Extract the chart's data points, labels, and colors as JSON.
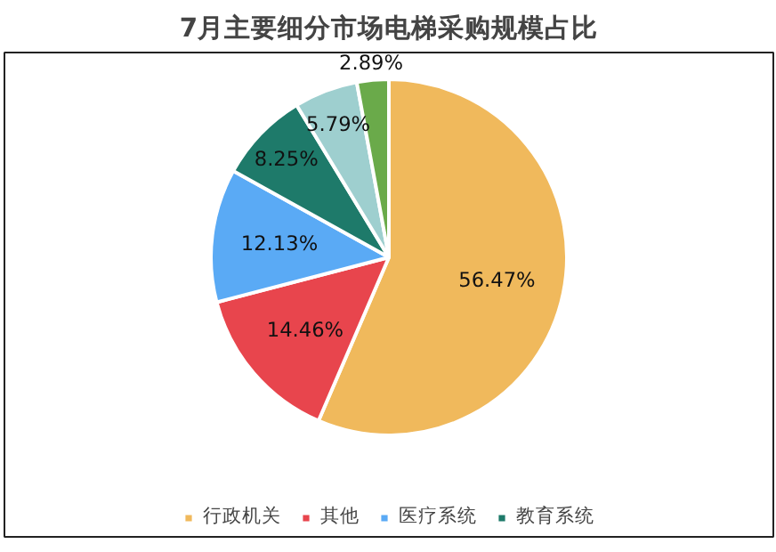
{
  "chart_data": {
    "type": "pie",
    "title": "7月主要细分市场电梯采购规模占比",
    "categories": [
      "行政机关",
      "其他",
      "医疗系统",
      "教育系统",
      null,
      null
    ],
    "values": [
      56.47,
      14.46,
      12.13,
      8.25,
      5.79,
      2.89
    ],
    "colors": [
      "#f0b95c",
      "#e8454d",
      "#5aaaf5",
      "#1e7a6a",
      "#9ecfcf",
      "#6aaa4a"
    ],
    "value_labels": [
      "56.47%",
      "14.46%",
      "12.13%",
      "8.25%",
      "5.79%",
      "2.89%"
    ],
    "legend": "bottom"
  }
}
